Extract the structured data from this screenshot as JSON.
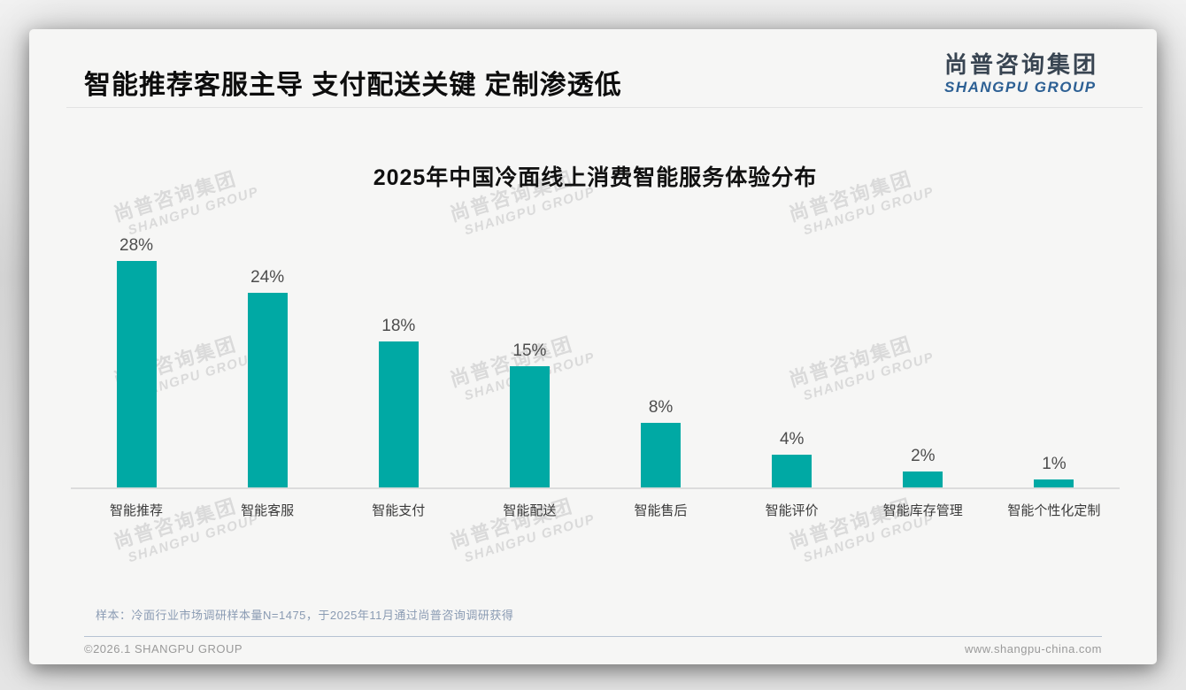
{
  "header": {
    "title": "智能推荐客服主导 支付配送关键 定制渗透低"
  },
  "logo": {
    "chinese": "尚普咨询集团",
    "english": "SHANGPU GROUP"
  },
  "watermark": {
    "chinese": "尚普咨询集团",
    "english": "SHANGPU GROUP"
  },
  "chart_data": {
    "type": "bar",
    "title": "2025年中国冷面线上消费智能服务体验分布",
    "categories": [
      "智能推荐",
      "智能客服",
      "智能支付",
      "智能配送",
      "智能售后",
      "智能评价",
      "智能库存管理",
      "智能个性化定制"
    ],
    "values": [
      28,
      24,
      18,
      15,
      8,
      4,
      2,
      1
    ],
    "unit": "%",
    "value_labels": [
      "28%",
      "24%",
      "18%",
      "15%",
      "8%",
      "4%",
      "2%",
      "1%"
    ],
    "bar_color": "#00a9a4",
    "xlabel": "",
    "ylabel": "",
    "ylim": [
      0,
      30
    ],
    "grid": false,
    "legend": false
  },
  "note": "样本：冷面行业市场调研样本量N=1475，于2025年11月通过尚普咨询调研获得",
  "footer": {
    "left": "©2026.1 SHANGPU GROUP",
    "right": "www.shangpu-china.com"
  },
  "colors": {
    "bar_teal": "#00a9a4",
    "logo_blue": "#2d6094",
    "watermark_gray": "#dadada"
  }
}
